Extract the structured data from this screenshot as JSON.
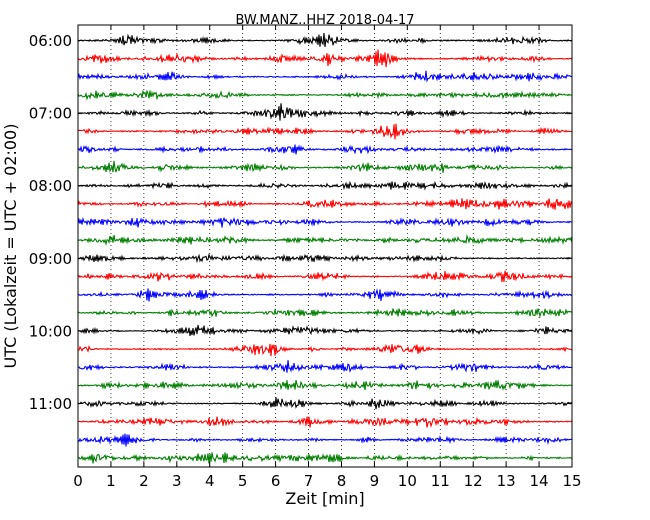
{
  "chart_data": {
    "type": "line",
    "title": "BW.MANZ..HHZ 2018-04-17",
    "xlabel": "Zeit  [min]",
    "ylabel": "UTC (Lokalzeit = UTC + 02:00)",
    "xlim": [
      0,
      15
    ],
    "x_ticks": [
      "0",
      "1",
      "2",
      "3",
      "4",
      "5",
      "6",
      "7",
      "8",
      "9",
      "10",
      "11",
      "12",
      "13",
      "14",
      "15"
    ],
    "y_tick_labels": [
      "06:00",
      "07:00",
      "08:00",
      "09:00",
      "10:00",
      "11:00"
    ],
    "y_tick_rows": [
      0,
      4,
      8,
      12,
      16,
      20
    ],
    "grid": "vertical dotted lines at each minute",
    "row_minutes": 15,
    "rows_per_hour": 4,
    "trace_colors": [
      "#000000",
      "#ff0000",
      "#0000ff",
      "#007f00"
    ],
    "rows": [
      {
        "start": "06:00"
      },
      {
        "start": "06:15"
      },
      {
        "start": "06:30"
      },
      {
        "start": "06:45"
      },
      {
        "start": "07:00"
      },
      {
        "start": "07:15"
      },
      {
        "start": "07:30"
      },
      {
        "start": "07:45"
      },
      {
        "start": "08:00"
      },
      {
        "start": "08:15"
      },
      {
        "start": "08:30"
      },
      {
        "start": "08:45"
      },
      {
        "start": "09:00"
      },
      {
        "start": "09:15"
      },
      {
        "start": "09:30"
      },
      {
        "start": "09:45"
      },
      {
        "start": "10:00"
      },
      {
        "start": "10:15"
      },
      {
        "start": "10:30"
      },
      {
        "start": "10:45"
      },
      {
        "start": "11:00"
      },
      {
        "start": "11:15"
      },
      {
        "start": "11:30"
      },
      {
        "start": "11:45"
      }
    ]
  }
}
